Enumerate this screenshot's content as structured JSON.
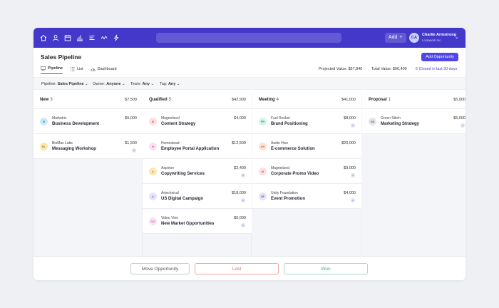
{
  "header": {
    "nav_icons": [
      "home-icon",
      "user-icon",
      "calendar-icon",
      "bar-chart-icon",
      "list-icon",
      "activity-icon",
      "bolt-icon"
    ],
    "add_label": "Add",
    "add_symbol": "+",
    "avatar_initials": "CA",
    "user_name": "Charlie Armstrong",
    "user_company": "Lookwork Inc.",
    "accent": "#4338ca"
  },
  "page": {
    "title": "Sales Pipeline",
    "add_button": "Add Opportunity"
  },
  "tabs": [
    {
      "label": "Pipeline",
      "icon": "pipeline-icon",
      "active": true
    },
    {
      "label": "List",
      "icon": "list-icon",
      "active": false
    },
    {
      "label": "Dashboard",
      "icon": "dashboard-icon",
      "active": false
    }
  ],
  "stats": {
    "projected": "Projected Value: $57,840",
    "total": "Total Value: $96,400",
    "closed": "6 Closed in last 30 days"
  },
  "filters": [
    {
      "label": "Pipeline:",
      "value": "Sales Pipeline"
    },
    {
      "label": "Owner:",
      "value": "Anyone"
    },
    {
      "label": "Team:",
      "value": "Any"
    },
    {
      "label": "Tag:",
      "value": "Any"
    }
  ],
  "columns": [
    {
      "name": "New",
      "count": "3",
      "total": "$7,500",
      "cards": [
        {
          "initials": "M",
          "company": "Marketric",
          "name": "Business Development",
          "amount": "$5,000",
          "bg": "#cde9f8",
          "fg": "#2d7fb0",
          "dot": false
        },
        {
          "initials": "BL",
          "company": "BioMax Labs",
          "name": "Messaging Workshop",
          "amount": "$1,500",
          "bg": "#fbe7b0",
          "fg": "#b07d13",
          "dot": true
        }
      ]
    },
    {
      "name": "Qualified",
      "count": "5",
      "total": "$42,900",
      "cards": [
        {
          "initials": "M",
          "company": "Magnetized",
          "name": "Content Strategy",
          "amount": "$4,000",
          "bg": "#fde0e0",
          "fg": "#d0504c",
          "dot": false
        },
        {
          "initials": "H",
          "company": "Homestead",
          "name": "Employee Portal Application",
          "amount": "$12,500",
          "bg": "#fbe0f0",
          "fg": "#c04c93",
          "dot": false
        },
        {
          "initials": "A",
          "company": "Aspirion",
          "name": "Copywriting Services",
          "amount": "$2,400",
          "bg": "#fde7b3",
          "fg": "#b27e16",
          "dot": true
        },
        {
          "initials": "A",
          "company": "Artechnical",
          "name": "US Digital Campaign",
          "amount": "$18,000",
          "bg": "#e4e3fb",
          "fg": "#5b54c7",
          "dot": true
        },
        {
          "initials": "VV",
          "company": "Video Vine",
          "name": "New Market Opportunities",
          "amount": "$6,000",
          "bg": "#fbe0f3",
          "fg": "#c24fa0",
          "dot": true
        }
      ]
    },
    {
      "name": "Meeting",
      "count": "4",
      "total": "$41,000",
      "cards": [
        {
          "initials": "FR",
          "company": "Fuel Rocket",
          "name": "Brand Positioning",
          "amount": "$8,000",
          "bg": "#d5f3e6",
          "fg": "#2d9a6e",
          "dot": true
        },
        {
          "initials": "AH",
          "company": "Audio Hive",
          "name": "E-commerce Solution",
          "amount": "$20,000",
          "bg": "#fde1d6",
          "fg": "#cf6a45",
          "dot": false
        },
        {
          "initials": "M",
          "company": "Magnetized",
          "name": "Corporate Promo Video",
          "amount": "$9,000",
          "bg": "#fde0e0",
          "fg": "#d0504c",
          "dot": true
        },
        {
          "initials": "UF",
          "company": "Unity Foundation",
          "name": "Event Promotion",
          "amount": "$4,000",
          "bg": "#e3e4f7",
          "fg": "#4e53a8",
          "dot": true
        }
      ]
    },
    {
      "name": "Proposal",
      "count": "1",
      "total": "$5,000",
      "cards": [
        {
          "initials": "GS",
          "company": "Green Stitch",
          "name": "Marketing Strategy",
          "amount": "$5,000",
          "bg": "#e3e5ec",
          "fg": "#4d5366",
          "dot": true
        }
      ]
    }
  ],
  "footer": {
    "move": "Move Opportunity",
    "lost": "Lost",
    "won": "Won"
  }
}
